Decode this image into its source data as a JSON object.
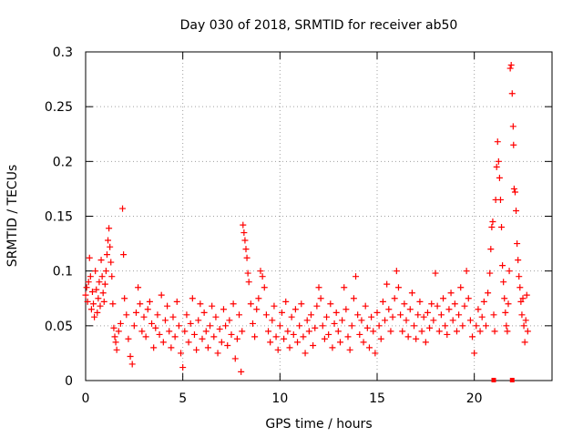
{
  "chart_data": {
    "type": "scatter",
    "title": "Day 030 of 2018, SRMTID for receiver ab50",
    "xlabel": "GPS time / hours",
    "ylabel": "SRMTID / TECUs",
    "xlim": [
      0,
      24
    ],
    "ylim": [
      0,
      0.3
    ],
    "x_ticks": [
      0,
      5,
      10,
      15,
      20
    ],
    "x_tick_labels": [
      "0",
      "5",
      "10",
      "15",
      "20"
    ],
    "y_ticks": [
      0,
      0.05,
      0.1,
      0.15,
      0.2,
      0.25,
      0.3
    ],
    "y_tick_labels": [
      "0",
      "0.05",
      "0.1",
      "0.15",
      "0.2",
      "0.25",
      "0.3"
    ],
    "grid": true,
    "marker": "+",
    "marker_color": "#ff0000",
    "series": [
      {
        "name": "SRMTID",
        "points": [
          [
            0.0,
            0.078
          ],
          [
            0.05,
            0.085
          ],
          [
            0.1,
            0.072
          ],
          [
            0.15,
            0.09
          ],
          [
            0.2,
            0.112
          ],
          [
            0.25,
            0.095
          ],
          [
            0.3,
            0.065
          ],
          [
            0.35,
            0.081
          ],
          [
            0.4,
            0.07
          ],
          [
            0.45,
            0.058
          ],
          [
            0.5,
            0.1
          ],
          [
            0.55,
            0.083
          ],
          [
            0.6,
            0.062
          ],
          [
            0.65,
            0.075
          ],
          [
            0.7,
            0.09
          ],
          [
            0.75,
            0.068
          ],
          [
            0.8,
            0.11
          ],
          [
            0.85,
            0.095
          ],
          [
            0.9,
            0.08
          ],
          [
            0.95,
            0.072
          ],
          [
            1.0,
            0.088
          ],
          [
            1.05,
            0.1
          ],
          [
            1.1,
            0.115
          ],
          [
            1.15,
            0.128
          ],
          [
            1.2,
            0.139
          ],
          [
            1.25,
            0.122
          ],
          [
            1.3,
            0.108
          ],
          [
            1.35,
            0.095
          ],
          [
            1.4,
            0.07
          ],
          [
            1.45,
            0.048
          ],
          [
            1.5,
            0.04
          ],
          [
            1.55,
            0.035
          ],
          [
            1.6,
            0.028
          ],
          [
            1.7,
            0.045
          ],
          [
            1.8,
            0.052
          ],
          [
            1.9,
            0.157
          ],
          [
            1.95,
            0.115
          ],
          [
            2.0,
            0.075
          ],
          [
            2.1,
            0.06
          ],
          [
            2.2,
            0.038
          ],
          [
            2.3,
            0.022
          ],
          [
            2.4,
            0.015
          ],
          [
            2.5,
            0.05
          ],
          [
            2.6,
            0.062
          ],
          [
            2.7,
            0.085
          ],
          [
            2.8,
            0.07
          ],
          [
            2.9,
            0.045
          ],
          [
            3.0,
            0.058
          ],
          [
            3.1,
            0.04
          ],
          [
            3.2,
            0.065
          ],
          [
            3.3,
            0.072
          ],
          [
            3.4,
            0.052
          ],
          [
            3.5,
            0.03
          ],
          [
            3.6,
            0.048
          ],
          [
            3.7,
            0.06
          ],
          [
            3.8,
            0.042
          ],
          [
            3.9,
            0.078
          ],
          [
            4.0,
            0.035
          ],
          [
            4.1,
            0.055
          ],
          [
            4.2,
            0.068
          ],
          [
            4.3,
            0.045
          ],
          [
            4.4,
            0.03
          ],
          [
            4.5,
            0.058
          ],
          [
            4.6,
            0.04
          ],
          [
            4.7,
            0.072
          ],
          [
            4.8,
            0.05
          ],
          [
            4.9,
            0.025
          ],
          [
            5.0,
            0.012
          ],
          [
            5.1,
            0.045
          ],
          [
            5.2,
            0.06
          ],
          [
            5.3,
            0.035
          ],
          [
            5.4,
            0.052
          ],
          [
            5.5,
            0.075
          ],
          [
            5.6,
            0.042
          ],
          [
            5.7,
            0.028
          ],
          [
            5.8,
            0.055
          ],
          [
            5.9,
            0.07
          ],
          [
            6.0,
            0.038
          ],
          [
            6.1,
            0.062
          ],
          [
            6.2,
            0.045
          ],
          [
            6.3,
            0.03
          ],
          [
            6.4,
            0.05
          ],
          [
            6.5,
            0.068
          ],
          [
            6.6,
            0.04
          ],
          [
            6.7,
            0.058
          ],
          [
            6.8,
            0.025
          ],
          [
            6.9,
            0.047
          ],
          [
            7.0,
            0.035
          ],
          [
            7.1,
            0.065
          ],
          [
            7.2,
            0.05
          ],
          [
            7.3,
            0.032
          ],
          [
            7.4,
            0.055
          ],
          [
            7.5,
            0.042
          ],
          [
            7.6,
            0.07
          ],
          [
            7.7,
            0.02
          ],
          [
            7.8,
            0.038
          ],
          [
            7.9,
            0.06
          ],
          [
            8.0,
            0.008
          ],
          [
            8.05,
            0.045
          ],
          [
            8.1,
            0.142
          ],
          [
            8.15,
            0.135
          ],
          [
            8.2,
            0.128
          ],
          [
            8.25,
            0.12
          ],
          [
            8.3,
            0.112
          ],
          [
            8.35,
            0.098
          ],
          [
            8.4,
            0.09
          ],
          [
            8.5,
            0.07
          ],
          [
            8.6,
            0.052
          ],
          [
            8.7,
            0.04
          ],
          [
            8.8,
            0.065
          ],
          [
            8.9,
            0.075
          ],
          [
            9.0,
            0.1
          ],
          [
            9.1,
            0.095
          ],
          [
            9.2,
            0.085
          ],
          [
            9.3,
            0.06
          ],
          [
            9.4,
            0.045
          ],
          [
            9.5,
            0.035
          ],
          [
            9.6,
            0.055
          ],
          [
            9.7,
            0.068
          ],
          [
            9.8,
            0.04
          ],
          [
            9.9,
            0.028
          ],
          [
            10.0,
            0.05
          ],
          [
            10.1,
            0.062
          ],
          [
            10.2,
            0.038
          ],
          [
            10.3,
            0.072
          ],
          [
            10.4,
            0.045
          ],
          [
            10.5,
            0.03
          ],
          [
            10.6,
            0.058
          ],
          [
            10.7,
            0.042
          ],
          [
            10.8,
            0.065
          ],
          [
            10.9,
            0.035
          ],
          [
            11.0,
            0.05
          ],
          [
            11.1,
            0.07
          ],
          [
            11.2,
            0.04
          ],
          [
            11.3,
            0.025
          ],
          [
            11.4,
            0.055
          ],
          [
            11.5,
            0.045
          ],
          [
            11.6,
            0.06
          ],
          [
            11.7,
            0.032
          ],
          [
            11.8,
            0.048
          ],
          [
            11.9,
            0.068
          ],
          [
            12.0,
            0.085
          ],
          [
            12.1,
            0.075
          ],
          [
            12.2,
            0.05
          ],
          [
            12.3,
            0.038
          ],
          [
            12.4,
            0.058
          ],
          [
            12.5,
            0.042
          ],
          [
            12.6,
            0.07
          ],
          [
            12.7,
            0.03
          ],
          [
            12.8,
            0.052
          ],
          [
            12.9,
            0.062
          ],
          [
            13.0,
            0.045
          ],
          [
            13.1,
            0.035
          ],
          [
            13.2,
            0.055
          ],
          [
            13.3,
            0.085
          ],
          [
            13.4,
            0.065
          ],
          [
            13.5,
            0.04
          ],
          [
            13.6,
            0.028
          ],
          [
            13.7,
            0.05
          ],
          [
            13.8,
            0.075
          ],
          [
            13.9,
            0.095
          ],
          [
            14.0,
            0.06
          ],
          [
            14.1,
            0.042
          ],
          [
            14.2,
            0.055
          ],
          [
            14.3,
            0.035
          ],
          [
            14.4,
            0.068
          ],
          [
            14.5,
            0.048
          ],
          [
            14.6,
            0.03
          ],
          [
            14.7,
            0.058
          ],
          [
            14.8,
            0.045
          ],
          [
            14.9,
            0.025
          ],
          [
            15.0,
            0.062
          ],
          [
            15.1,
            0.05
          ],
          [
            15.2,
            0.038
          ],
          [
            15.3,
            0.072
          ],
          [
            15.4,
            0.055
          ],
          [
            15.5,
            0.088
          ],
          [
            15.6,
            0.065
          ],
          [
            15.7,
            0.045
          ],
          [
            15.8,
            0.058
          ],
          [
            15.9,
            0.075
          ],
          [
            16.0,
            0.1
          ],
          [
            16.1,
            0.085
          ],
          [
            16.2,
            0.06
          ],
          [
            16.3,
            0.045
          ],
          [
            16.4,
            0.07
          ],
          [
            16.5,
            0.055
          ],
          [
            16.6,
            0.04
          ],
          [
            16.7,
            0.065
          ],
          [
            16.8,
            0.08
          ],
          [
            16.9,
            0.05
          ],
          [
            17.0,
            0.038
          ],
          [
            17.1,
            0.06
          ],
          [
            17.2,
            0.072
          ],
          [
            17.3,
            0.045
          ],
          [
            17.4,
            0.058
          ],
          [
            17.5,
            0.035
          ],
          [
            17.6,
            0.062
          ],
          [
            17.7,
            0.048
          ],
          [
            17.8,
            0.07
          ],
          [
            17.9,
            0.055
          ],
          [
            18.0,
            0.098
          ],
          [
            18.1,
            0.068
          ],
          [
            18.2,
            0.045
          ],
          [
            18.3,
            0.06
          ],
          [
            18.4,
            0.075
          ],
          [
            18.5,
            0.05
          ],
          [
            18.6,
            0.042
          ],
          [
            18.7,
            0.065
          ],
          [
            18.8,
            0.08
          ],
          [
            18.9,
            0.055
          ],
          [
            19.0,
            0.07
          ],
          [
            19.1,
            0.045
          ],
          [
            19.2,
            0.06
          ],
          [
            19.3,
            0.085
          ],
          [
            19.4,
            0.05
          ],
          [
            19.5,
            0.068
          ],
          [
            19.6,
            0.1
          ],
          [
            19.7,
            0.075
          ],
          [
            19.8,
            0.055
          ],
          [
            19.9,
            0.04
          ],
          [
            20.0,
            0.025
          ],
          [
            20.1,
            0.05
          ],
          [
            20.2,
            0.065
          ],
          [
            20.3,
            0.045
          ],
          [
            20.4,
            0.058
          ],
          [
            20.5,
            0.072
          ],
          [
            20.6,
            0.05
          ],
          [
            20.7,
            0.08
          ],
          [
            20.8,
            0.098
          ],
          [
            20.85,
            0.12
          ],
          [
            20.9,
            0.14
          ],
          [
            20.95,
            0.145
          ],
          [
            21.0,
            0.06
          ],
          [
            21.05,
            0.045
          ],
          [
            21.1,
            0.165
          ],
          [
            21.15,
            0.195
          ],
          [
            21.2,
            0.218
          ],
          [
            21.25,
            0.2
          ],
          [
            21.3,
            0.185
          ],
          [
            21.35,
            0.165
          ],
          [
            21.4,
            0.14
          ],
          [
            21.45,
            0.105
          ],
          [
            21.5,
            0.09
          ],
          [
            21.55,
            0.075
          ],
          [
            21.6,
            0.062
          ],
          [
            21.65,
            0.05
          ],
          [
            21.7,
            0.045
          ],
          [
            21.75,
            0.07
          ],
          [
            21.8,
            0.1
          ],
          [
            21.85,
            0.285
          ],
          [
            21.9,
            0.288
          ],
          [
            21.95,
            0.262
          ],
          [
            22.0,
            0.232
          ],
          [
            22.02,
            0.215
          ],
          [
            22.05,
            0.175
          ],
          [
            22.1,
            0.172
          ],
          [
            22.15,
            0.155
          ],
          [
            22.2,
            0.125
          ],
          [
            22.25,
            0.11
          ],
          [
            22.3,
            0.095
          ],
          [
            22.35,
            0.085
          ],
          [
            22.4,
            0.072
          ],
          [
            22.45,
            0.06
          ],
          [
            22.5,
            0.075
          ],
          [
            22.55,
            0.05
          ],
          [
            22.6,
            0.035
          ],
          [
            22.65,
            0.055
          ],
          [
            22.7,
            0.078
          ],
          [
            22.75,
            0.045
          ]
        ],
        "zero_points": [
          [
            21.0,
            0.0
          ],
          [
            21.95,
            0.0
          ]
        ]
      }
    ]
  }
}
